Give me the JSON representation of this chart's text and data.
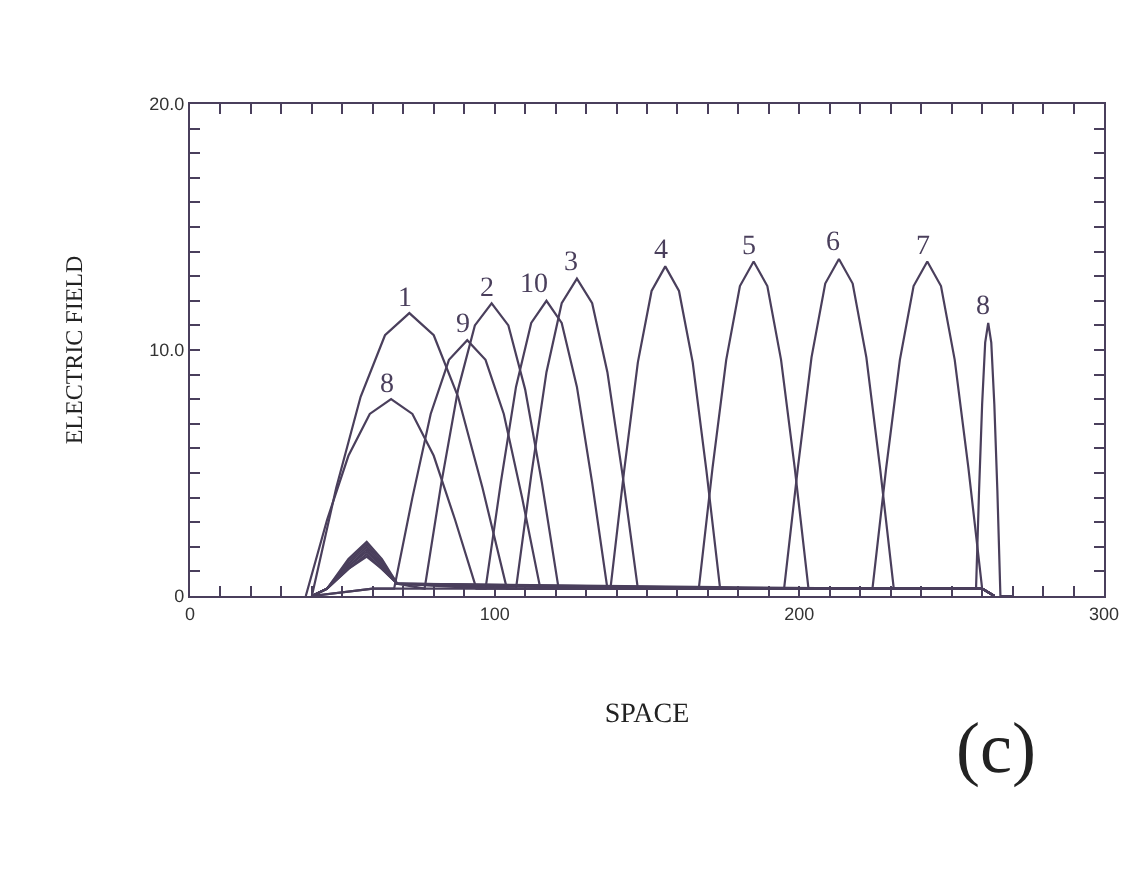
{
  "chart_data": {
    "type": "line",
    "xlabel": "SPACE",
    "ylabel": "ELECTRIC FIELD",
    "xlim": [
      0,
      300
    ],
    "ylim": [
      0,
      20
    ],
    "xticks": [
      0,
      {
        "value": 10,
        "label": null
      },
      {
        "value": 20,
        "label": null
      },
      {
        "value": 30,
        "label": null
      },
      {
        "value": 40,
        "label": null
      },
      {
        "value": 50,
        "label": null
      },
      {
        "value": 60,
        "label": null
      },
      {
        "value": 70,
        "label": null
      },
      {
        "value": 80,
        "label": null
      },
      {
        "value": 90,
        "label": null
      },
      100,
      {
        "value": 110,
        "label": null
      },
      {
        "value": 120,
        "label": null
      },
      {
        "value": 130,
        "label": null
      },
      {
        "value": 140,
        "label": null
      },
      {
        "value": 150,
        "label": null
      },
      {
        "value": 160,
        "label": null
      },
      {
        "value": 170,
        "label": null
      },
      {
        "value": 180,
        "label": null
      },
      {
        "value": 190,
        "label": null
      },
      200,
      {
        "value": 210,
        "label": null
      },
      {
        "value": 220,
        "label": null
      },
      {
        "value": 230,
        "label": null
      },
      {
        "value": 240,
        "label": null
      },
      {
        "value": 250,
        "label": null
      },
      {
        "value": 260,
        "label": null
      },
      {
        "value": 270,
        "label": null
      },
      {
        "value": 280,
        "label": null
      },
      {
        "value": 290,
        "label": null
      },
      300
    ],
    "yticks": [
      0,
      {
        "value": 1,
        "label": null
      },
      {
        "value": 2,
        "label": null
      },
      {
        "value": 3,
        "label": null
      },
      {
        "value": 4,
        "label": null
      },
      {
        "value": 5,
        "label": null
      },
      {
        "value": 6,
        "label": null
      },
      {
        "value": 7,
        "label": null
      },
      {
        "value": 8,
        "label": null
      },
      {
        "value": 9,
        "label": null
      },
      {
        "value": 10,
        "label": "10.0"
      },
      {
        "value": 11,
        "label": null
      },
      {
        "value": 12,
        "label": null
      },
      {
        "value": 13,
        "label": null
      },
      {
        "value": 14,
        "label": null
      },
      {
        "value": 15,
        "label": null
      },
      {
        "value": 16,
        "label": null
      },
      {
        "value": 17,
        "label": null
      },
      {
        "value": 18,
        "label": null
      },
      {
        "value": 19,
        "label": null
      },
      {
        "value": 20,
        "label": "20.0"
      }
    ],
    "grid": false,
    "legend": false,
    "marker": "none",
    "line_style": "solid",
    "annotations": [
      "(c)"
    ],
    "series": [
      {
        "name": "8",
        "color": "#4a3f5c",
        "x": [
          38,
          45,
          52,
          59,
          66,
          73,
          80,
          87,
          94,
          100,
          260,
          264
        ],
        "values": [
          0,
          3.1,
          5.7,
          7.4,
          8.0,
          7.4,
          5.7,
          3.1,
          0.3,
          0.3,
          0.3,
          0
        ]
      },
      {
        "name": "1",
        "color": "#4a3f5c",
        "x": [
          40,
          48,
          56,
          64,
          72,
          80,
          88,
          96,
          104,
          110,
          260,
          264
        ],
        "values": [
          0,
          4.4,
          8.1,
          10.6,
          11.5,
          10.6,
          8.1,
          4.4,
          0.3,
          0.3,
          0.3,
          0
        ]
      },
      {
        "name": "9",
        "color": "#4a3f5c",
        "x": [
          40,
          60,
          67,
          73,
          79,
          85,
          91,
          97,
          103,
          109,
          115,
          260,
          264
        ],
        "values": [
          0,
          0.3,
          0.3,
          4.0,
          7.4,
          9.6,
          10.4,
          9.6,
          7.4,
          4.0,
          0.3,
          0.3,
          0
        ]
      },
      {
        "name": "2",
        "color": "#4a3f5c",
        "x": [
          40,
          45,
          52,
          58,
          63,
          68,
          77,
          82.5,
          88,
          93.5,
          99,
          104.5,
          110,
          115.5,
          121,
          260,
          264
        ],
        "values": [
          0,
          0.3,
          1.5,
          2.2,
          1.5,
          0.5,
          0.3,
          4.6,
          8.4,
          11.0,
          11.9,
          11.0,
          8.4,
          4.6,
          0.3,
          0.3,
          0
        ]
      },
      {
        "name": "10",
        "color": "#4a3f5c",
        "x": [
          40,
          45,
          52,
          58,
          63,
          68,
          97,
          102,
          107,
          112,
          117,
          122,
          127,
          132,
          137,
          260,
          264
        ],
        "values": [
          0,
          0.3,
          1.4,
          2.1,
          1.4,
          0.5,
          0.3,
          4.6,
          8.5,
          11.1,
          12.0,
          11.1,
          8.5,
          4.6,
          0.3,
          0.3,
          0
        ]
      },
      {
        "name": "3",
        "color": "#4a3f5c",
        "x": [
          40,
          45,
          52,
          58,
          63,
          68,
          107,
          112,
          117,
          122,
          127,
          132,
          137,
          142,
          147,
          260,
          264
        ],
        "values": [
          0,
          0.3,
          1.3,
          2.0,
          1.3,
          0.5,
          0.3,
          4.9,
          9.1,
          11.9,
          12.9,
          11.9,
          9.1,
          4.9,
          0.3,
          0.3,
          0
        ]
      },
      {
        "name": "4",
        "color": "#4a3f5c",
        "x": [
          40,
          45,
          52,
          58,
          63,
          68,
          138,
          142.5,
          147,
          151.5,
          156,
          160.5,
          165,
          169.5,
          174,
          260,
          264
        ],
        "values": [
          0,
          0.3,
          1.2,
          1.9,
          1.2,
          0.5,
          0.3,
          5.1,
          9.5,
          12.4,
          13.4,
          12.4,
          9.5,
          5.1,
          0.3,
          0.3,
          0
        ]
      },
      {
        "name": "5",
        "color": "#4a3f5c",
        "x": [
          40,
          45,
          52,
          58,
          63,
          68,
          167,
          171.5,
          176,
          180.5,
          185,
          189.5,
          194,
          198.5,
          203,
          260,
          264
        ],
        "values": [
          0,
          0.3,
          1.2,
          1.8,
          1.2,
          0.5,
          0.3,
          5.2,
          9.6,
          12.6,
          13.6,
          12.6,
          9.6,
          5.2,
          0.3,
          0.3,
          0
        ]
      },
      {
        "name": "6",
        "color": "#4a3f5c",
        "x": [
          40,
          45,
          52,
          58,
          63,
          68,
          195,
          199.5,
          204,
          208.5,
          213,
          217.5,
          222,
          226.5,
          231,
          260,
          264
        ],
        "values": [
          0,
          0.3,
          1.1,
          1.7,
          1.1,
          0.5,
          0.3,
          5.2,
          9.7,
          12.7,
          13.7,
          12.7,
          9.7,
          5.2,
          0.3,
          0.3,
          0
        ]
      },
      {
        "name": "7",
        "color": "#4a3f5c",
        "x": [
          40,
          45,
          52,
          58,
          63,
          68,
          224,
          228.5,
          233,
          237.5,
          242,
          246.5,
          251,
          255.5,
          260,
          264
        ],
        "values": [
          0,
          0.3,
          1.1,
          1.6,
          1.1,
          0.5,
          0.3,
          5.2,
          9.6,
          12.6,
          13.6,
          12.6,
          9.6,
          5.2,
          0.3,
          0
        ]
      },
      {
        "name": "8",
        "color": "#4a3f5c",
        "x": [
          40,
          60,
          258,
          259,
          260,
          261,
          262,
          263,
          264,
          265,
          266,
          270
        ],
        "values": [
          0,
          0.3,
          0.3,
          4.3,
          7.8,
          10.3,
          11.1,
          10.3,
          7.8,
          4.3,
          0,
          0
        ]
      }
    ]
  }
}
